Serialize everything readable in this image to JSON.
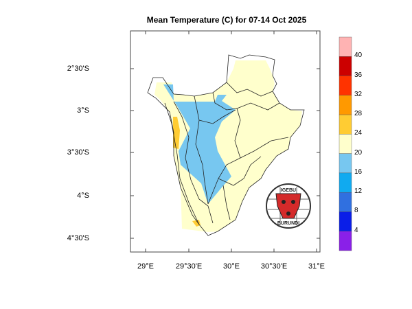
{
  "title": "Mean Temperature (C) for 07-14 Oct 2025",
  "map": {
    "region": "Burundi",
    "lat_labels": [
      "2°30'S",
      "3°S",
      "3°30'S",
      "4°S",
      "4°30'S"
    ],
    "lon_labels": [
      "29°E",
      "29°30'E",
      "30°E",
      "30°30'E",
      "31°E"
    ],
    "dominant_range_c": "20-24",
    "cool_area_range_c": "16-20",
    "warm_patches_range_c": "24-28"
  },
  "colorbar": {
    "labels": [
      "40",
      "36",
      "32",
      "28",
      "24",
      "20",
      "16",
      "12",
      "8",
      "4"
    ],
    "colors": [
      "#ffb3b3",
      "#cc0000",
      "#ff3300",
      "#ff9900",
      "#ffcc33",
      "#ffffcc",
      "#77c7f0",
      "#10aaf0",
      "#3070e0",
      "#0a1ee8",
      "#8a20e8"
    ]
  },
  "logo": {
    "text_top": "IGEBU",
    "text_bottom": "BURUNDI"
  }
}
